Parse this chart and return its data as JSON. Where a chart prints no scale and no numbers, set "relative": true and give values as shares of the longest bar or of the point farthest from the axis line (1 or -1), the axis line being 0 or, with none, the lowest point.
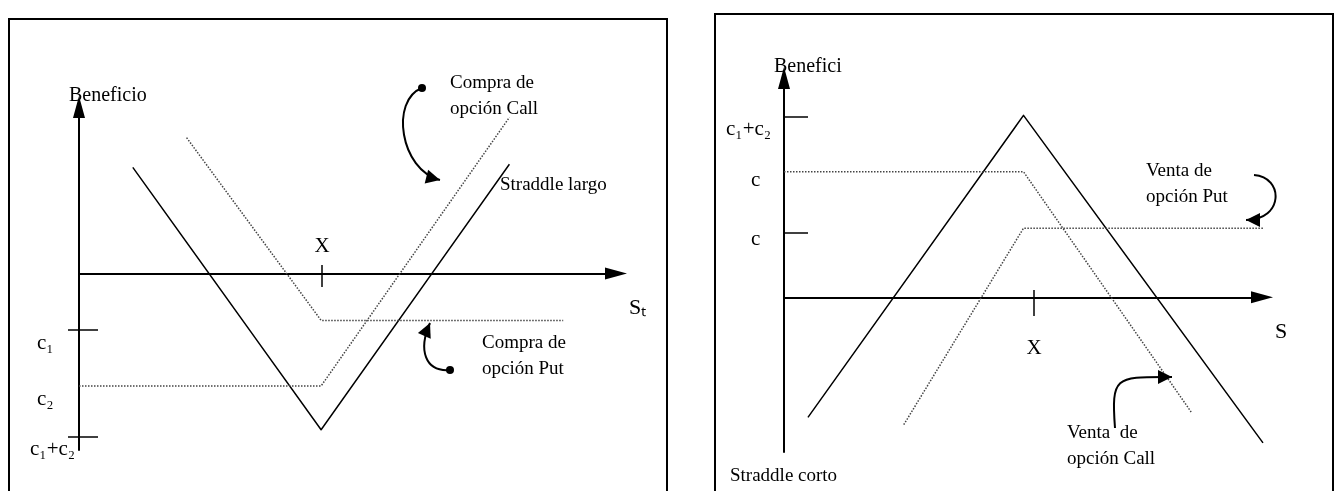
{
  "chart_data": [
    {
      "type": "line",
      "relative": true,
      "ylabel": "Beneficio",
      "xlabel": "Sₜ",
      "marker": "none",
      "categories": [
        null,
        null,
        null,
        null,
        null,
        null,
        null,
        null,
        null,
        null,
        null,
        null,
        null,
        null,
        null,
        null,
        null,
        null,
        null,
        null,
        null
      ],
      "series": [
        {
          "color": "#000000",
          "line_style": "solid",
          "values": [
            null,
            null,
            0.68,
            null,
            null,
            null,
            null,
            null,
            null,
            -1,
            null,
            null,
            null,
            null,
            null,
            null,
            0.7,
            null,
            null,
            null,
            null
          ]
        },
        {
          "color": "#444444",
          "line_style": "dotted",
          "values": [
            null,
            null,
            null,
            null,
            0.87,
            null,
            null,
            null,
            null,
            -0.3,
            null,
            null,
            null,
            null,
            null,
            null,
            null,
            null,
            -0.3,
            null,
            null
          ]
        },
        {
          "color": "#444444",
          "line_style": "dotted",
          "values": [
            -0.72,
            null,
            null,
            null,
            null,
            null,
            null,
            null,
            null,
            -0.72,
            null,
            null,
            null,
            null,
            null,
            null,
            1,
            null,
            null,
            null,
            null
          ]
        }
      ],
      "annotations": [
        "Compra de\nopción Call",
        "Straddle largo",
        "Compra de\nopción Put",
        "X",
        "c₁",
        "c₂",
        "c₁+c₂"
      ]
    },
    {
      "type": "line",
      "relative": true,
      "ylabel": "Benefici",
      "xlabel": "S",
      "marker": "none",
      "categories": [
        null,
        null,
        null,
        null,
        null,
        null,
        null,
        null,
        null,
        null,
        null,
        null,
        null,
        null,
        null,
        null,
        null,
        null,
        null,
        null,
        null
      ],
      "series": [
        {
          "color": "#000000",
          "line_style": "solid",
          "values": [
            null,
            -0.66,
            null,
            null,
            null,
            null,
            null,
            null,
            null,
            null,
            1,
            null,
            null,
            null,
            null,
            null,
            null,
            null,
            null,
            null,
            -0.8
          ]
        },
        {
          "color": "#444444",
          "line_style": "dotted",
          "values": [
            0.69,
            null,
            null,
            null,
            null,
            null,
            null,
            null,
            null,
            null,
            0.69,
            null,
            null,
            null,
            null,
            null,
            null,
            -0.63,
            null,
            null,
            null
          ]
        },
        {
          "color": "#444444",
          "line_style": "dotted",
          "values": [
            null,
            null,
            null,
            null,
            null,
            -0.7,
            null,
            null,
            null,
            null,
            0.38,
            null,
            null,
            null,
            null,
            null,
            null,
            null,
            null,
            null,
            0.38
          ]
        }
      ],
      "annotations": [
        "Venta de\nopción Put",
        "Venta  de\nopción Call",
        "Straddle corto",
        "X",
        "c₁+c₂",
        "c",
        "c"
      ]
    }
  ]
}
